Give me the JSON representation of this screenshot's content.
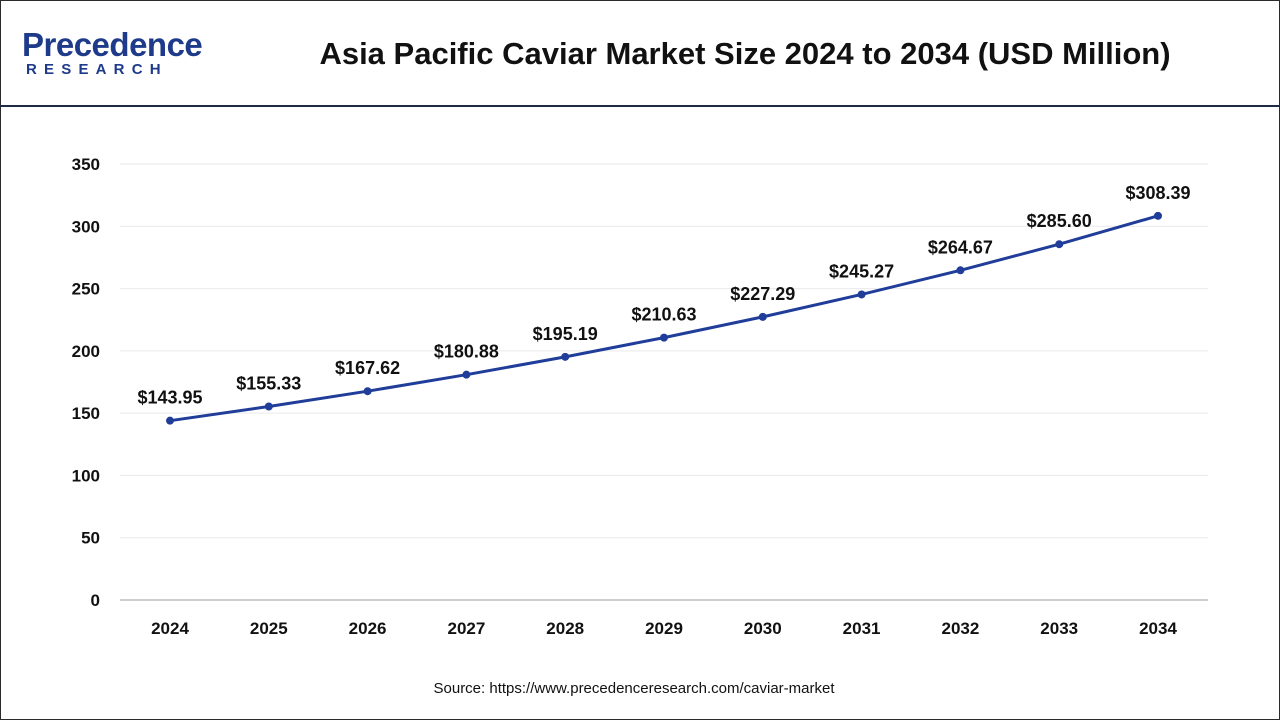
{
  "header": {
    "logo_main": "Precedence",
    "logo_sub": "RESEARCH",
    "title": "Asia Pacific Caviar Market Size 2024 to 2034 (USD Million)"
  },
  "footer": {
    "source": "Source: https://www.precedenceresearch.com/caviar-market"
  },
  "colors": {
    "line": "#1f3d99",
    "brand": "#1e3a8a",
    "grid": "#e9e9e9",
    "axis": "#bdbdbd"
  },
  "chart_data": {
    "type": "line",
    "title": "Asia Pacific Caviar Market Size 2024 to 2034 (USD Million)",
    "xlabel": "",
    "ylabel": "",
    "categories": [
      "2024",
      "2025",
      "2026",
      "2027",
      "2028",
      "2029",
      "2030",
      "2031",
      "2032",
      "2033",
      "2034"
    ],
    "series": [
      {
        "values": [
          143.95,
          155.33,
          167.62,
          180.88,
          195.19,
          210.63,
          227.29,
          245.27,
          264.67,
          285.6,
          308.39
        ],
        "labels": [
          "$143.95",
          "$155.33",
          "$167.62",
          "$180.88",
          "$195.19",
          "$210.63",
          "$227.29",
          "$245.27",
          "$264.67",
          "$285.60",
          "$308.39"
        ]
      }
    ],
    "ylim": [
      0,
      350
    ],
    "yticks": [
      "0",
      "50",
      "100",
      "150",
      "200",
      "250",
      "300",
      "350"
    ],
    "grid": true,
    "legend": "none"
  }
}
